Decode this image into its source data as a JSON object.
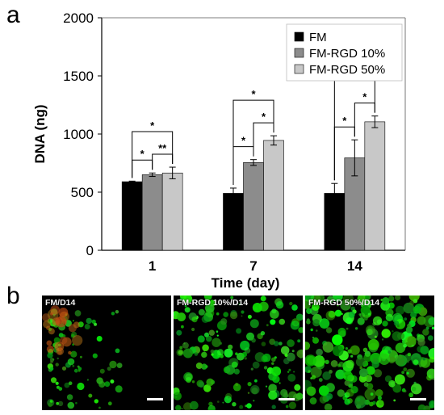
{
  "figure": {
    "panel_a_letter": "a",
    "panel_b_letter": "b"
  },
  "chart_data": {
    "type": "bar",
    "title": "",
    "xlabel": "Time (day)",
    "ylabel": "DNA (ng)",
    "ylim": [
      0,
      2000
    ],
    "yticks": [
      0,
      500,
      1000,
      1500,
      2000
    ],
    "categories": [
      "1",
      "7",
      "14"
    ],
    "legend_position": "top-right",
    "grid": false,
    "series": [
      {
        "name": "FM",
        "color": "#000000",
        "values": [
          590,
          490,
          490
        ],
        "errors": [
          5,
          45,
          85
        ]
      },
      {
        "name": "FM-RGD 10%",
        "color": "#8c8c8c",
        "values": [
          650,
          755,
          795
        ],
        "errors": [
          15,
          25,
          155
        ]
      },
      {
        "name": "FM-RGD 50%",
        "color": "#c8c8c8",
        "values": [
          665,
          945,
          1105
        ],
        "errors": [
          50,
          40,
          50
        ]
      }
    ],
    "significance": [
      {
        "group": 0,
        "from": 0,
        "to": 1,
        "label": "*"
      },
      {
        "group": 0,
        "from": 1,
        "to": 2,
        "label": "**"
      },
      {
        "group": 0,
        "from": 0,
        "to": 2,
        "label": "*"
      },
      {
        "group": 1,
        "from": 0,
        "to": 1,
        "label": "*"
      },
      {
        "group": 1,
        "from": 1,
        "to": 2,
        "label": "*"
      },
      {
        "group": 1,
        "from": 0,
        "to": 2,
        "label": "*"
      },
      {
        "group": 2,
        "from": 0,
        "to": 1,
        "label": "*"
      },
      {
        "group": 2,
        "from": 1,
        "to": 2,
        "label": "*"
      },
      {
        "group": 2,
        "from": 0,
        "to": 2,
        "label": "*"
      }
    ]
  },
  "micrographs": [
    {
      "label": "FM/D14",
      "density": 0.18,
      "red_spot": true
    },
    {
      "label": "FM-RGD 10%/D14",
      "density": 0.55,
      "red_spot": false
    },
    {
      "label": "FM-RGD 50%/D14",
      "density": 0.85,
      "red_spot": false
    }
  ]
}
